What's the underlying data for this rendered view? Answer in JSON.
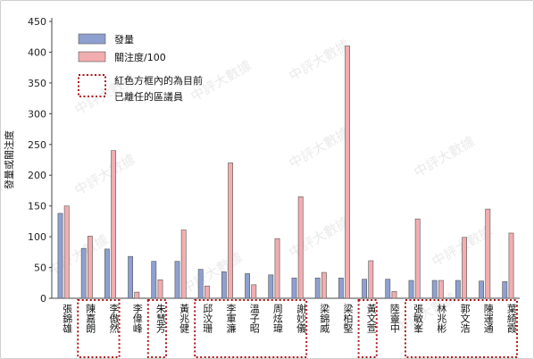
{
  "chart_data": {
    "type": "bar",
    "ylabel": "發量或關注度",
    "ylim": [
      0,
      450
    ],
    "yticks": [
      0,
      50,
      100,
      150,
      200,
      250,
      300,
      350,
      400,
      450
    ],
    "grid": false,
    "legend_position": "top-left",
    "categories": [
      "張錦雄",
      "陳嘉朗",
      "李傲然",
      "李偉峰",
      "朱慧芳",
      "黃兆健",
      "邱汶珊",
      "李軍濂",
      "溫子昭",
      "周炫瑋",
      "謝妙儀",
      "梁錦威",
      "梁柏堅",
      "黃文萱",
      "陸靈中",
      "張敏峯",
      "林兆彬",
      "郭文浩",
      "陳運通",
      "葉綺霞"
    ],
    "series": [
      {
        "name": "發量",
        "color": "#8ea0d0",
        "values": [
          138,
          81,
          80,
          68,
          60,
          60,
          47,
          43,
          40,
          38,
          33,
          33,
          33,
          31,
          31,
          29,
          29,
          29,
          28,
          27
        ]
      },
      {
        "name": "關注度/100",
        "color": "#f2adb0",
        "values": [
          150,
          101,
          240,
          10,
          30,
          111,
          20,
          220,
          22,
          97,
          165,
          42,
          410,
          61,
          11,
          129,
          29,
          99,
          145,
          106
        ]
      }
    ],
    "highlight_note": "紅色方框內的為目前已離任的區議員",
    "highlight_color": "#b0151a",
    "highlight_groups": [
      [
        1,
        2
      ],
      [
        4,
        4
      ],
      [
        6,
        10
      ],
      [
        13,
        13
      ],
      [
        15,
        19
      ]
    ]
  },
  "watermark": "中評大數據"
}
